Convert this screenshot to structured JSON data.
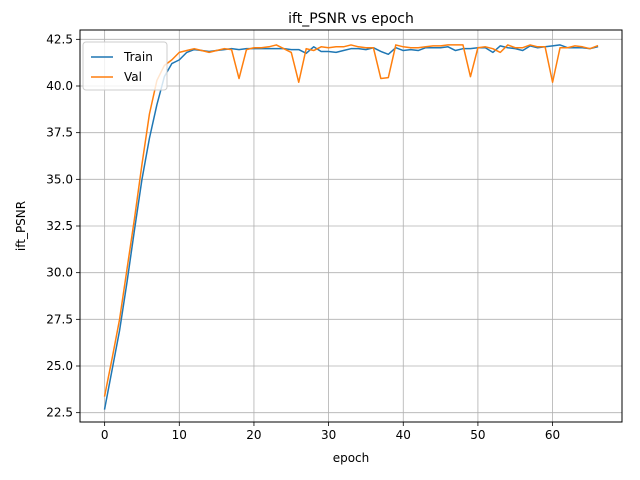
{
  "chart_data": {
    "type": "line",
    "title": "ift_PSNR vs epoch",
    "xlabel": "epoch",
    "ylabel": "ift_PSNR",
    "xlim": [
      -3.3,
      69.3
    ],
    "ylim": [
      22.0,
      43.0
    ],
    "xticks": [
      0,
      10,
      20,
      30,
      40,
      50,
      60
    ],
    "yticks": [
      22.5,
      25.0,
      27.5,
      30.0,
      32.5,
      35.0,
      37.5,
      40.0,
      42.5
    ],
    "grid": true,
    "legend_position": "top-left",
    "series": [
      {
        "name": "Train",
        "color": "#1f77b4",
        "values": [
          22.7,
          24.8,
          26.9,
          29.5,
          32.3,
          35.0,
          37.2,
          39.0,
          40.5,
          41.2,
          41.4,
          41.8,
          41.95,
          41.9,
          41.85,
          41.9,
          41.95,
          42.0,
          41.95,
          42.0,
          42.0,
          42.0,
          42.0,
          42.0,
          42.0,
          41.95,
          41.95,
          41.75,
          42.1,
          41.85,
          41.85,
          41.8,
          41.9,
          42.0,
          42.0,
          41.95,
          42.05,
          41.85,
          41.7,
          42.05,
          41.9,
          41.95,
          41.9,
          42.05,
          42.05,
          42.05,
          42.1,
          41.9,
          42.0,
          42.0,
          42.05,
          42.05,
          41.8,
          42.15,
          42.05,
          42.0,
          41.9,
          42.15,
          42.05,
          42.1,
          42.15,
          42.2,
          42.05,
          42.05,
          42.05,
          42.0,
          42.1
        ]
      },
      {
        "name": "Val",
        "color": "#ff7f0e",
        "values": [
          23.4,
          25.4,
          27.5,
          30.2,
          32.9,
          35.8,
          38.5,
          40.3,
          41.1,
          41.4,
          41.8,
          41.9,
          42.0,
          41.9,
          41.8,
          41.9,
          42.0,
          41.95,
          40.4,
          41.95,
          42.05,
          42.05,
          42.1,
          42.2,
          42.0,
          41.8,
          40.2,
          42.0,
          41.9,
          42.1,
          42.05,
          42.1,
          42.1,
          42.2,
          42.1,
          42.05,
          42.05,
          40.4,
          40.45,
          42.2,
          42.1,
          42.05,
          42.05,
          42.1,
          42.15,
          42.15,
          42.2,
          42.2,
          42.2,
          40.5,
          42.05,
          42.1,
          42.0,
          41.8,
          42.2,
          42.05,
          42.05,
          42.2,
          42.1,
          42.1,
          40.2,
          42.05,
          42.05,
          42.15,
          42.1,
          42.0,
          42.15
        ]
      }
    ]
  }
}
